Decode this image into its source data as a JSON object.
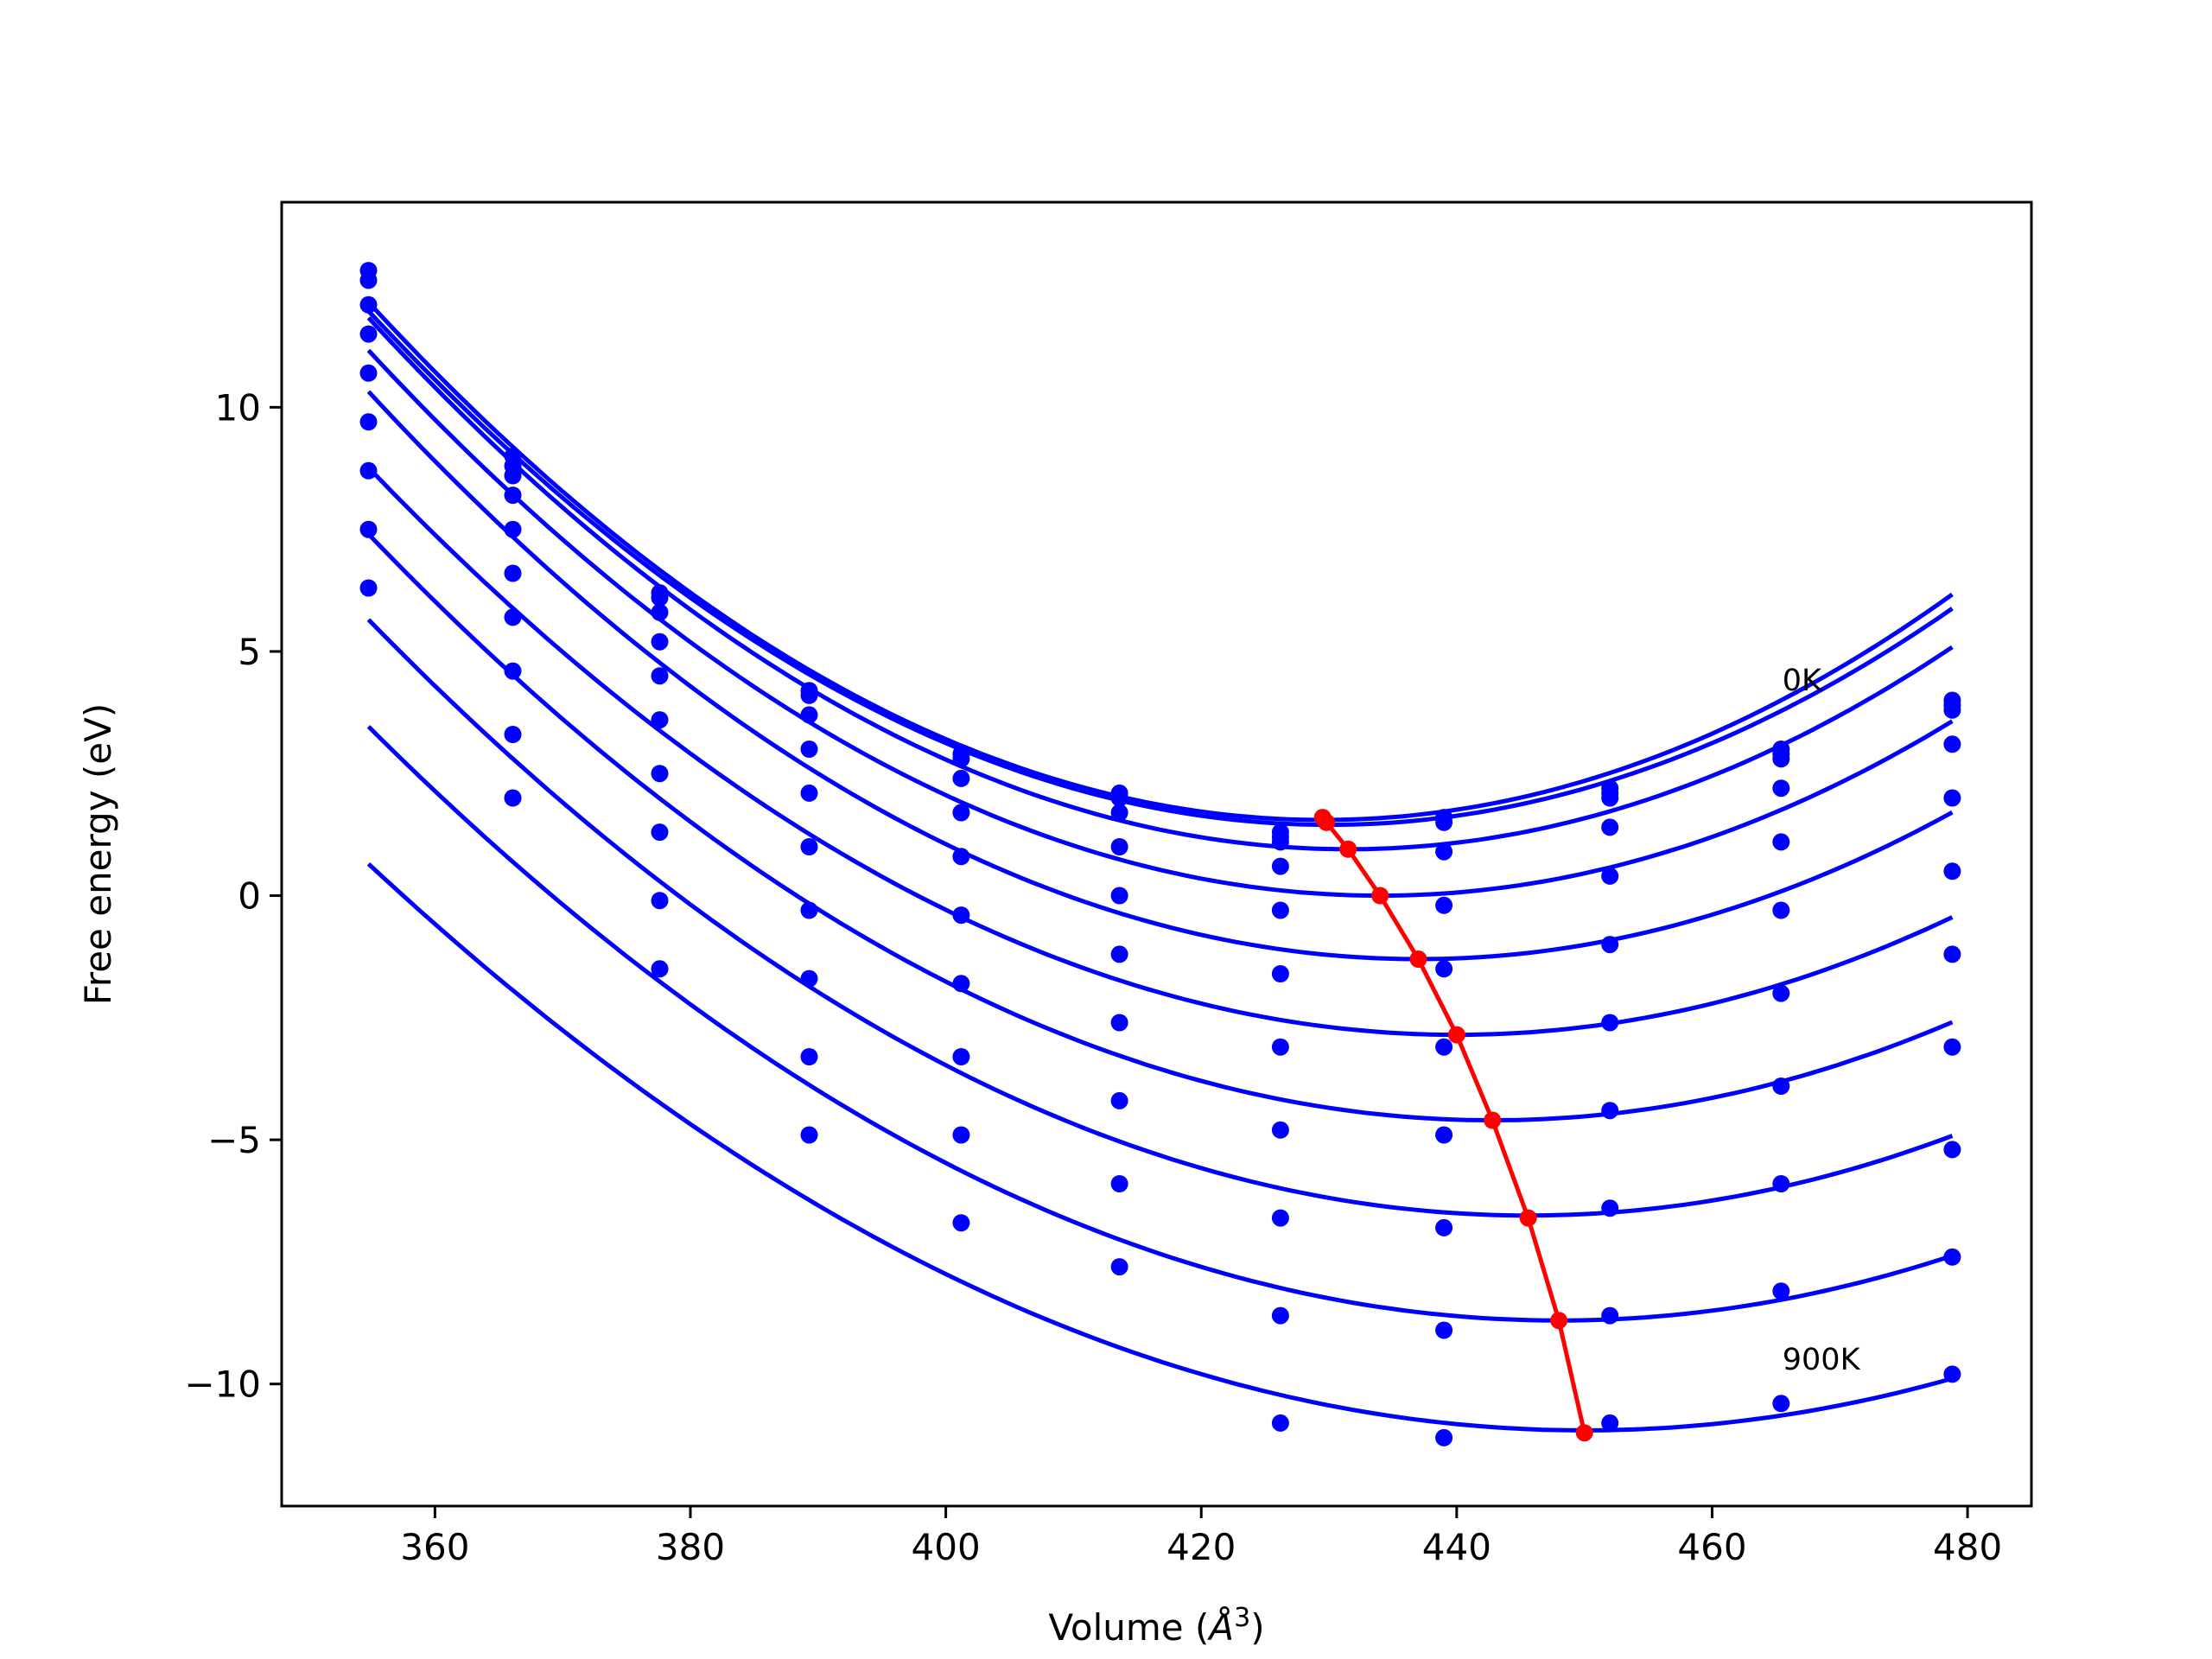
{
  "chart_data": {
    "type": "line",
    "xlabel_prefix": "Volume (",
    "xlabel_unit_base": "Å",
    "xlabel_unit_exp": "3",
    "xlabel_suffix": ")",
    "ylabel": "Free energy (eV)",
    "xlim": [
      348,
      485
    ],
    "ylim": [
      -12.5,
      14.2
    ],
    "xticks": [
      360,
      380,
      400,
      420,
      440,
      460,
      480
    ],
    "yticks": [
      -10,
      -5,
      0,
      5,
      10
    ],
    "xtick_labels": [
      "360",
      "380",
      "400",
      "420",
      "440",
      "460",
      "480"
    ],
    "ytick_labels": [
      "−10",
      "−5",
      "0",
      "5",
      "10"
    ],
    "grid": false,
    "annotations": [
      {
        "text": "0K",
        "x": 465.5,
        "y": 4.2
      },
      {
        "text": "900K",
        "x": 465.5,
        "y": -9.7
      }
    ],
    "colors": {
      "curves": "#0000ff",
      "minima": "#ff0000",
      "axes": "#000000"
    },
    "x": [
      354.8,
      366.1,
      377.6,
      389.3,
      401.2,
      413.6,
      426.2,
      439.0,
      452.0,
      465.4,
      478.8
    ],
    "series": [
      {
        "temperature_index": 0,
        "values": [
          12.8,
          9.0,
          6.2,
          4.2,
          2.9,
          2.1,
          1.3,
          1.6,
          2.2,
          3.0,
          4.0
        ],
        "min_x": 429.5,
        "min_y": 1.6
      },
      {
        "temperature_index": 1,
        "values": [
          12.6,
          8.8,
          6.1,
          4.1,
          2.8,
          2.0,
          1.2,
          1.5,
          2.1,
          2.9,
          3.9
        ],
        "min_x": 429.8,
        "min_y": 1.5
      },
      {
        "temperature_index": 2,
        "values": [
          12.1,
          8.6,
          5.8,
          3.7,
          2.4,
          1.7,
          1.1,
          0.9,
          2.0,
          2.8,
          3.8
        ],
        "min_x": 431.5,
        "min_y": 0.9
      },
      {
        "temperature_index": 3,
        "values": [
          11.5,
          8.2,
          5.2,
          3.0,
          1.7,
          1.0,
          0.6,
          -0.2,
          1.4,
          2.2,
          3.1
        ],
        "min_x": 434.0,
        "min_y": 0.0
      },
      {
        "temperature_index": 4,
        "values": [
          10.7,
          7.5,
          4.5,
          2.1,
          0.8,
          0.0,
          -0.3,
          -1.5,
          0.4,
          1.1,
          2.0
        ],
        "min_x": 437.0,
        "min_y": -1.3
      },
      {
        "temperature_index": 5,
        "values": [
          9.7,
          6.6,
          3.6,
          1.0,
          -0.4,
          -1.2,
          -1.6,
          -3.1,
          -1.0,
          -0.3,
          0.5
        ],
        "min_x": 440.0,
        "min_y": -2.8
      },
      {
        "temperature_index": 6,
        "values": [
          8.7,
          5.7,
          2.5,
          -0.3,
          -1.8,
          -2.6,
          -3.1,
          -4.9,
          -2.6,
          -2.0,
          -1.2
        ],
        "min_x": 442.8,
        "min_y": -4.6
      },
      {
        "temperature_index": 7,
        "values": [
          7.5,
          4.6,
          1.3,
          -1.7,
          -3.3,
          -4.2,
          -4.8,
          -6.8,
          -4.4,
          -3.9,
          -3.1
        ],
        "min_x": 445.6,
        "min_y": -6.6
      },
      {
        "temperature_index": 8,
        "values": [
          6.3,
          3.3,
          -0.1,
          -3.3,
          -4.9,
          -5.9,
          -6.6,
          -8.9,
          -6.4,
          -5.9,
          -5.2
        ],
        "min_x": 448.0,
        "min_y": -8.7
      },
      {
        "temperature_index": 9,
        "values": [
          null,
          2.0,
          -1.5,
          -4.9,
          -6.7,
          -7.6,
          -8.6,
          -11.1,
          -8.6,
          -8.1,
          -7.4
        ],
        "min_x": 450.0,
        "min_y": -11.0
      },
      {
        "temperature_index": 10,
        "values": [
          null,
          null,
          null,
          null,
          null,
          null,
          -10.8,
          null,
          -10.8,
          -10.4,
          -9.8
        ],
        "min_x": null,
        "min_y": null
      }
    ],
    "fit_curves": [
      {
        "x0": 429.5,
        "y0": 1.55,
        "k": 0.0019
      },
      {
        "x0": 430.0,
        "y0": 1.45,
        "k": 0.00186
      },
      {
        "x0": 431.5,
        "y0": 0.95,
        "k": 0.00185
      },
      {
        "x0": 434.0,
        "y0": 0.0,
        "k": 0.00178
      },
      {
        "x0": 437.0,
        "y0": -1.3,
        "k": 0.00172
      },
      {
        "x0": 440.0,
        "y0": -2.85,
        "k": 0.0016
      },
      {
        "x0": 442.8,
        "y0": -4.6,
        "k": 0.00155
      },
      {
        "x0": 445.6,
        "y0": -6.55,
        "k": 0.00148
      },
      {
        "x0": 448.0,
        "y0": -8.7,
        "k": 0.0014
      },
      {
        "x0": 450.0,
        "y0": -10.95,
        "k": 0.00128
      }
    ],
    "minima_path": {
      "x": [
        429.5,
        429.8,
        431.5,
        434.0,
        437.0,
        440.0,
        442.8,
        445.6,
        448.0,
        450.0
      ],
      "y": [
        1.6,
        1.5,
        0.95,
        0.0,
        -1.3,
        -2.85,
        -4.6,
        -6.6,
        -8.7,
        -11.0
      ]
    }
  }
}
